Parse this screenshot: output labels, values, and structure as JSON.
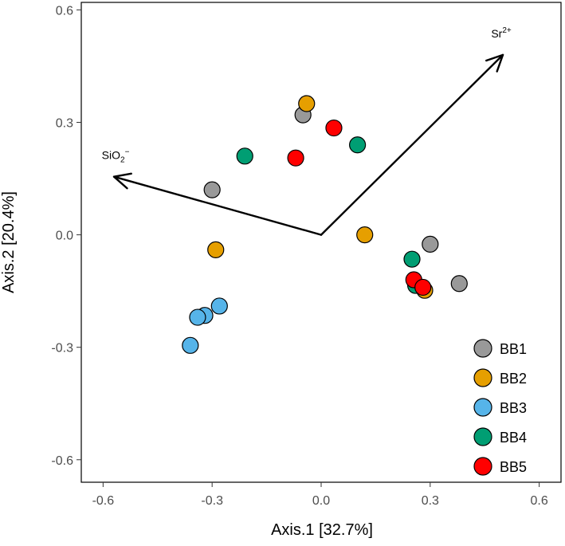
{
  "chart_data": {
    "type": "scatter",
    "title": "",
    "xlabel": "Axis.1   [32.7%]",
    "ylabel": "Axis.2   [20.4%]",
    "xlim": [
      -0.66,
      0.66
    ],
    "ylim": [
      -0.66,
      0.62
    ],
    "xticks": [
      -0.6,
      -0.3,
      0.0,
      0.3,
      0.6
    ],
    "yticks": [
      -0.6,
      -0.3,
      0.0,
      0.3,
      0.6
    ],
    "xtick_labels": [
      "-0.6",
      "-0.3",
      "0.0",
      "0.3",
      "0.6"
    ],
    "ytick_labels": [
      "-0.6",
      "-0.3",
      "0.0",
      "0.3",
      "0.6"
    ],
    "grid": false,
    "legend_position": "bottom-right",
    "series": [
      {
        "name": "BB1",
        "color": "#999999",
        "points": [
          [
            -0.05,
            0.32
          ],
          [
            -0.3,
            0.12
          ],
          [
            0.3,
            -0.025
          ],
          [
            0.38,
            -0.13
          ]
        ]
      },
      {
        "name": "BB2",
        "color": "#E69F00",
        "points": [
          [
            -0.04,
            0.35
          ],
          [
            0.12,
            0.0
          ],
          [
            -0.29,
            -0.04
          ],
          [
            0.285,
            -0.148
          ]
        ]
      },
      {
        "name": "BB3",
        "color": "#56B4E9",
        "points": [
          [
            -0.28,
            -0.19
          ],
          [
            -0.32,
            -0.215
          ],
          [
            -0.34,
            -0.22
          ],
          [
            -0.36,
            -0.295
          ]
        ]
      },
      {
        "name": "BB4",
        "color": "#009E73",
        "points": [
          [
            -0.21,
            0.21
          ],
          [
            0.1,
            0.24
          ],
          [
            0.25,
            -0.065
          ],
          [
            0.26,
            -0.135
          ]
        ]
      },
      {
        "name": "BB5",
        "color": "#FF0000",
        "points": [
          [
            0.035,
            0.285
          ],
          [
            -0.07,
            0.205
          ],
          [
            0.255,
            -0.12
          ],
          [
            0.28,
            -0.14
          ]
        ]
      }
    ],
    "vectors": [
      {
        "name": "Sr",
        "superscript": "2+",
        "subscript": "",
        "end": [
          0.5,
          0.48
        ]
      },
      {
        "name": "SiO",
        "superscript": "−",
        "subscript": "2",
        "end": [
          -0.57,
          0.155
        ]
      }
    ]
  }
}
